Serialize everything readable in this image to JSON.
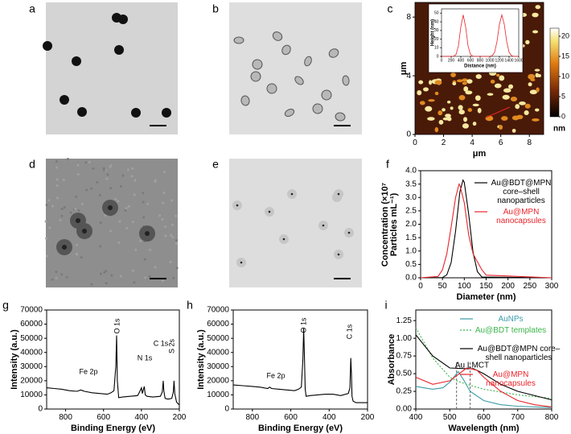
{
  "images": [
    {
      "panel": "a"
    },
    {
      "panel": "b"
    },
    {
      "panel": "d"
    },
    {
      "panel": "e"
    }
  ],
  "chart_data": [
    {
      "type": "heatmap",
      "panel": "c",
      "xlabel": "μm",
      "ylabel": "μm",
      "xlim": [
        0,
        9
      ],
      "ylim": [
        0,
        9
      ],
      "xticks": [
        0,
        2,
        4,
        6,
        8
      ],
      "yticks": [
        0,
        4,
        8
      ],
      "colorbar": {
        "label": "nm",
        "lim": [
          0,
          22
        ],
        "ticks": [
          0,
          5,
          10,
          15,
          20
        ]
      },
      "inset": {
        "type": "line",
        "xlabel": "Distance (nm)",
        "ylabel": "Height (nm)",
        "xlim": [
          0,
          1600
        ],
        "ylim": [
          0,
          55
        ],
        "xticks": [
          0,
          200,
          400,
          600,
          800,
          1000,
          1200,
          1400,
          1600
        ],
        "yticks": [
          0,
          10,
          20,
          30,
          40,
          50
        ],
        "series": [
          {
            "color": "#e8242a",
            "x": [
              0,
              100,
              200,
              250,
              300,
              350,
              400,
              450,
              500,
              550,
              600,
              650,
              700,
              800,
              900,
              1000,
              1050,
              1100,
              1150,
              1200,
              1250,
              1300,
              1350,
              1400,
              1450,
              1500,
              1600
            ],
            "values": [
              0,
              0,
              0,
              0.2,
              2.1,
              12,
              34,
              48,
              34,
              12,
              2.1,
              0.2,
              0,
              0,
              0,
              0,
              0.8,
              4.8,
              17.3,
              37.2,
              48,
              37.2,
              17.3,
              4.8,
              0.8,
              0,
              0
            ]
          }
        ]
      }
    },
    {
      "type": "line",
      "panel": "f",
      "xlabel": "Diameter (nm)",
      "ylabel": "Concentration (×10⁷ Particles mL⁻¹)",
      "xlim": [
        0,
        300
      ],
      "ylim": [
        0,
        4
      ],
      "xticks": [
        0,
        50,
        100,
        150,
        200,
        250,
        300
      ],
      "yticks": [
        {
          "value": 0,
          "label": "0.0"
        },
        0.5,
        {
          "value": 1,
          "label": "1.0"
        },
        1.5,
        {
          "value": 2,
          "label": "2.0"
        },
        2.5,
        {
          "value": 3,
          "label": "3.0"
        },
        3.5,
        {
          "value": 4,
          "label": "4.0"
        }
      ],
      "series": [
        {
          "name": "Au@BDT@MPN core–shell nanoparticles",
          "color": "#000000",
          "x": [
            0,
            50,
            60,
            70,
            80,
            90,
            97,
            100,
            110,
            120,
            130,
            140,
            300
          ],
          "values": [
            0,
            0.01,
            0.11,
            0.57,
            1.75,
            3.22,
            3.65,
            3.57,
            2.37,
            0.95,
            0.23,
            0.03,
            0
          ]
        },
        {
          "name": "Au@MPN nanocapsules",
          "color": "#e8242a",
          "x": [
            0,
            40,
            50,
            60,
            70,
            80,
            88,
            90,
            100,
            110,
            120,
            130,
            140,
            150,
            300
          ],
          "values": [
            0,
            0.05,
            0.3,
            0.9,
            1.9,
            3,
            3.5,
            3.45,
            2.8,
            1.6,
            0.9,
            0.6,
            0.3,
            0.1,
            0
          ]
        }
      ]
    },
    {
      "type": "line",
      "panel": "g",
      "xlabel": "Binding Energy (eV)",
      "ylabel": "Intensity (a.u.)",
      "xlim": [
        900,
        200
      ],
      "ylim": [
        0,
        70000
      ],
      "xticks": [
        800,
        600,
        400,
        200
      ],
      "yticks": [
        0,
        10000,
        20000,
        30000,
        40000,
        50000,
        60000,
        70000
      ],
      "annotations": [
        "Fe 2p",
        "O 1s",
        "N 1s",
        "C 1s",
        "S 2s"
      ],
      "series": [
        {
          "color": "#000000",
          "x": [
            900,
            860,
            820,
            780,
            740,
            720,
            710,
            700,
            660,
            620,
            580,
            560,
            545,
            535,
            531,
            527,
            520,
            500,
            460,
            420,
            410,
            400,
            395,
            385,
            380,
            370,
            340,
            300,
            290,
            285,
            282,
            275,
            260,
            240,
            232,
            228,
            224,
            215,
            205,
            200
          ],
          "values": [
            15000,
            14500,
            14000,
            13000,
            12500,
            13500,
            13000,
            12500,
            11500,
            11000,
            10500,
            11500,
            13000,
            30000,
            52000,
            20000,
            8000,
            8500,
            9000,
            9500,
            12000,
            15000,
            11000,
            16000,
            10000,
            9000,
            8500,
            9000,
            12000,
            20000,
            13000,
            7500,
            7000,
            7500,
            12000,
            20000,
            11000,
            5000,
            3500,
            3000
          ]
        }
      ]
    },
    {
      "type": "line",
      "panel": "h",
      "xlabel": "Binding Energy (eV)",
      "ylabel": "Intensity (a.u.)",
      "xlim": [
        900,
        200
      ],
      "ylim": [
        0,
        70000
      ],
      "xticks": [
        800,
        600,
        400,
        200
      ],
      "yticks": [
        0,
        10000,
        20000,
        30000,
        40000,
        50000,
        60000,
        70000
      ],
      "annotations": [
        "Fe 2p",
        "O 1s",
        "C 1s"
      ],
      "series": [
        {
          "color": "#000000",
          "x": [
            900,
            850,
            800,
            760,
            720,
            710,
            700,
            660,
            620,
            580,
            560,
            545,
            537,
            533,
            529,
            525,
            520,
            500,
            460,
            420,
            380,
            340,
            300,
            292,
            287,
            284,
            281,
            275,
            260,
            240,
            220,
            200
          ],
          "values": [
            17000,
            16500,
            16000,
            15500,
            14500,
            15500,
            14500,
            14000,
            13500,
            13000,
            14000,
            15500,
            35000,
            57000,
            38000,
            14000,
            9000,
            9500,
            10000,
            10500,
            10500,
            9500,
            11000,
            15000,
            36000,
            25000,
            9000,
            5500,
            4500,
            4500,
            4500,
            4500
          ]
        }
      ]
    },
    {
      "type": "line",
      "panel": "i",
      "xlabel": "Wavelength (nm)",
      "ylabel": "Absorbance",
      "xlim": [
        400,
        800
      ],
      "ylim": [
        0,
        1.4
      ],
      "xticks": [
        400,
        500,
        600,
        700,
        800
      ],
      "yticks": [
        {
          "value": 0,
          "label": "0.00"
        },
        0.25,
        {
          "value": 0.5,
          "label": "0.50"
        },
        0.75,
        {
          "value": 1,
          "label": "1.00"
        },
        {
          "value": 1.25,
          "label": "1.25"
        }
      ],
      "annotation": "Au LMCT",
      "vlines": [
        520,
        560
      ],
      "series": [
        {
          "name": "AuNPs",
          "color": "#3a9ca8",
          "x": [
            400,
            450,
            480,
            500,
            520,
            525,
            540,
            560,
            600,
            650,
            700,
            800
          ],
          "values": [
            0.32,
            0.28,
            0.3,
            0.38,
            0.5,
            0.53,
            0.42,
            0.25,
            0.12,
            0.06,
            0.04,
            0.02
          ]
        },
        {
          "name": "Au@BDT templates",
          "color": "#3cb44b",
          "style": "dotted",
          "x": [
            400,
            450,
            500,
            520,
            550,
            600,
            700,
            800
          ],
          "values": [
            1.15,
            0.72,
            0.45,
            0.4,
            0.35,
            0.28,
            0.2,
            0.15
          ]
        },
        {
          "name": "Au@BDT@MPN core–shell nanoparticles",
          "color": "#000000",
          "x": [
            400,
            450,
            500,
            550,
            570,
            600,
            650,
            700,
            800
          ],
          "values": [
            1.05,
            0.75,
            0.58,
            0.57,
            0.57,
            0.5,
            0.35,
            0.25,
            0.13
          ]
        },
        {
          "name": "Au@MPN nanocapsules",
          "color": "#e8242a",
          "x": [
            400,
            450,
            500,
            550,
            580,
            600,
            650,
            700,
            750,
            800
          ],
          "values": [
            0.45,
            0.35,
            0.4,
            0.58,
            0.55,
            0.45,
            0.25,
            0.12,
            0.06,
            0.03
          ]
        }
      ]
    }
  ]
}
